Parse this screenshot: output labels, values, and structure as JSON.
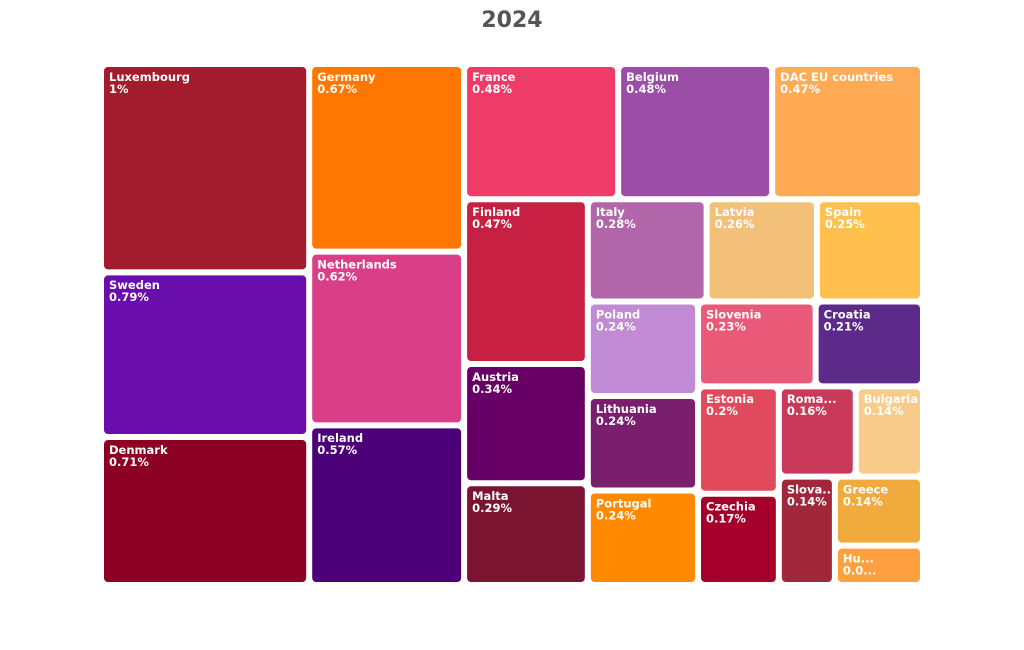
{
  "chart_data": {
    "type": "treemap",
    "title": "2024",
    "categories": [
      "Luxembourg",
      "Sweden",
      "Denmark",
      "Germany",
      "Netherlands",
      "Ireland",
      "France",
      "Belgium",
      "DAC EU countries",
      "Finland",
      "Austria",
      "Malta",
      "Italy",
      "Latvia",
      "Spain",
      "Poland",
      "Lithuania",
      "Portugal",
      "Slovenia",
      "Croatia",
      "Estonia",
      "Czechia",
      "Roma...",
      "Bulgaria",
      "Slova...",
      "Greece",
      "Hu..."
    ],
    "values": [
      1,
      0.79,
      0.71,
      0.67,
      0.62,
      0.57,
      0.48,
      0.48,
      0.47,
      0.47,
      0.34,
      0.29,
      0.28,
      0.26,
      0.25,
      0.24,
      0.24,
      0.24,
      0.23,
      0.21,
      0.2,
      0.17,
      0.16,
      0.14,
      0.14,
      0.14,
      0.08
    ],
    "value_labels": [
      "1%",
      "0.79%",
      "0.71%",
      "0.67%",
      "0.62%",
      "0.57%",
      "0.48%",
      "0.48%",
      "0.47%",
      "0.47%",
      "0.34%",
      "0.29%",
      "0.28%",
      "0.26%",
      "0.25%",
      "0.24%",
      "0.24%",
      "0.24%",
      "0.23%",
      "0.21%",
      "0.2%",
      "0.17%",
      "0.16%",
      "0.14%",
      "0.14%",
      "0.14%",
      "0.0..."
    ],
    "colors": [
      "#a31c2d",
      "#6a0dad",
      "#8b0023",
      "#ff7700",
      "#d93f87",
      "#4b0078",
      "#ee3b68",
      "#9b4ea5",
      "#ffab55",
      "#c72042",
      "#660066",
      "#7a1430",
      "#b166aa",
      "#f2c078",
      "#ffc04d",
      "#c08ad4",
      "#7a1f6e",
      "#ff8a00",
      "#e85a78",
      "#5c2a88",
      "#e04a5c",
      "#a5002c",
      "#c93a5a",
      "#f7cc8a",
      "#a0283a",
      "#f0ab3c",
      "#ffa040"
    ]
  }
}
